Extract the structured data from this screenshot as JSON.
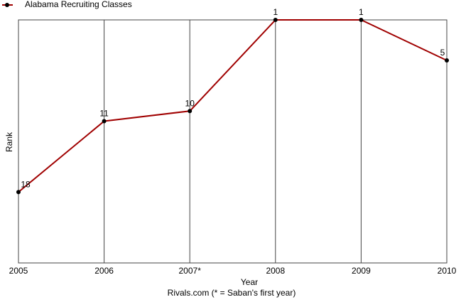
{
  "chart_data": {
    "type": "line",
    "categories": [
      "2005",
      "2006",
      "2007*",
      "2008",
      "2009",
      "2010"
    ],
    "series": [
      {
        "name": "Alabama Recruiting Classes",
        "color": "#a00000",
        "values": [
          18,
          11,
          10,
          1,
          1,
          5
        ]
      }
    ],
    "xlabel": "Year",
    "caption": "Rivals.com (* = Saban's first year)",
    "ylabel": "Rank",
    "ylim": [
      25,
      1
    ],
    "grid": true
  }
}
